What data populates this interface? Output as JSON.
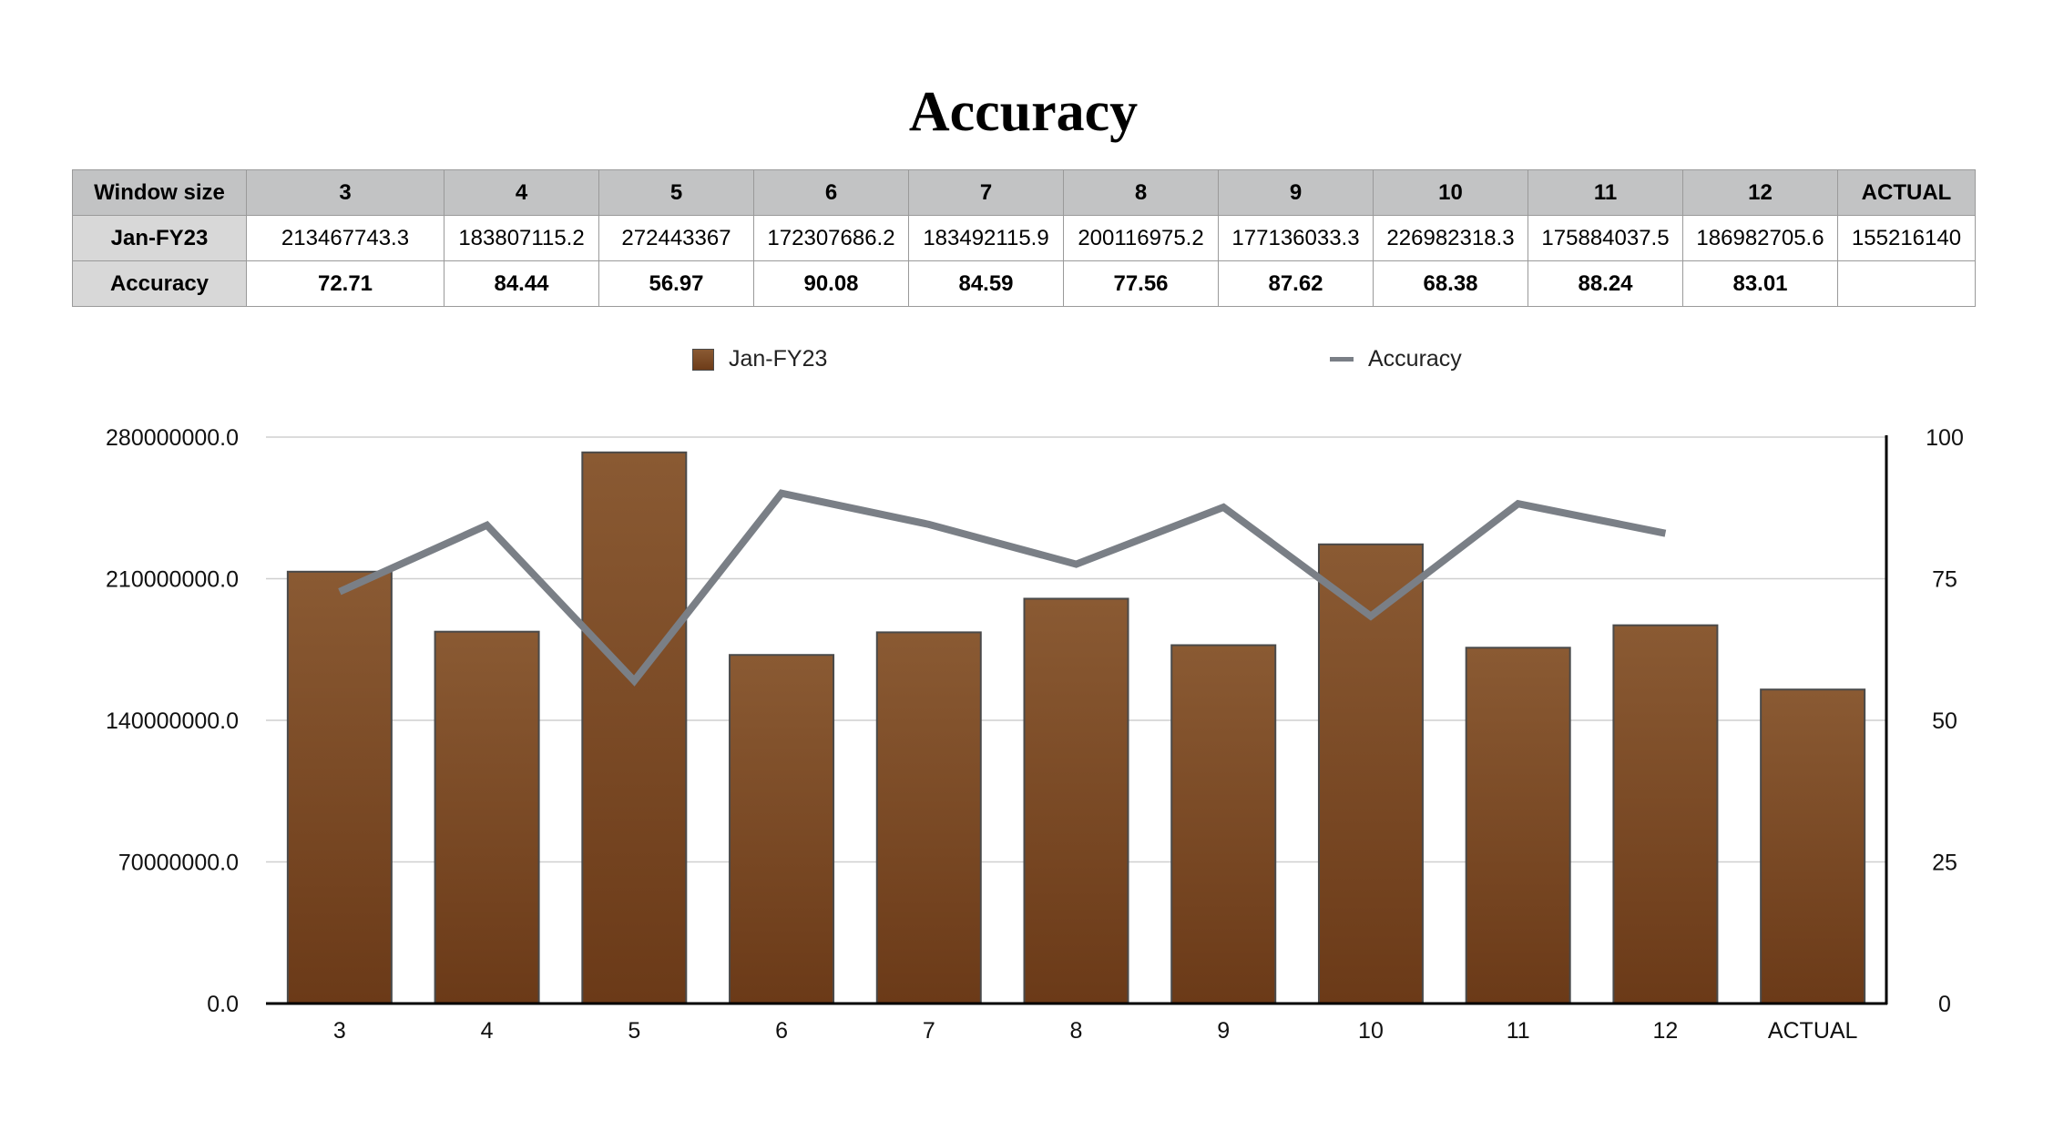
{
  "title": "Accuracy",
  "table": {
    "row_headers": [
      "Window size",
      "Jan-FY23",
      "Accuracy"
    ],
    "columns": [
      "3",
      "4",
      "5",
      "6",
      "7",
      "8",
      "9",
      "10",
      "11",
      "12",
      "ACTUAL"
    ],
    "jan_fy23": [
      "213467743.3",
      "183807115.2",
      "272443367",
      "172307686.2",
      "183492115.9",
      "200116975.2",
      "177136033.3",
      "226982318.3",
      "175884037.5",
      "186982705.6",
      "155216140"
    ],
    "accuracy": [
      "72.71",
      "84.44",
      "56.97",
      "90.08",
      "84.59",
      "77.56",
      "87.62",
      "68.38",
      "88.24",
      "83.01",
      ""
    ]
  },
  "legend": {
    "bar_label": "Jan-FY23",
    "line_label": "Accuracy"
  },
  "colors": {
    "bar_top": "#8a5a33",
    "bar_bottom": "#6b3a18",
    "line": "#7a7f86",
    "grid": "#cfcfcf"
  },
  "chart_data": {
    "type": "bar",
    "title": "Accuracy",
    "categories": [
      "3",
      "4",
      "5",
      "6",
      "7",
      "8",
      "9",
      "10",
      "11",
      "12",
      "ACTUAL"
    ],
    "series": [
      {
        "name": "Jan-FY23",
        "type": "bar",
        "axis": "left",
        "values": [
          213467743.3,
          183807115.2,
          272443367,
          172307686.2,
          183492115.9,
          200116975.2,
          177136033.3,
          226982318.3,
          175884037.5,
          186982705.6,
          155216140
        ]
      },
      {
        "name": "Accuracy",
        "type": "line",
        "axis": "right",
        "values": [
          72.71,
          84.44,
          56.97,
          90.08,
          84.59,
          77.56,
          87.62,
          68.38,
          88.24,
          83.01,
          null
        ]
      }
    ],
    "y_left": {
      "ticks": [
        "0.0",
        "70000000.0",
        "140000000.0",
        "210000000.0",
        "280000000.0"
      ],
      "range": [
        0,
        280000000
      ]
    },
    "y_right": {
      "ticks": [
        "0",
        "25",
        "50",
        "75",
        "100"
      ],
      "range": [
        0,
        100
      ]
    },
    "grid": true,
    "legend_position": "top"
  }
}
